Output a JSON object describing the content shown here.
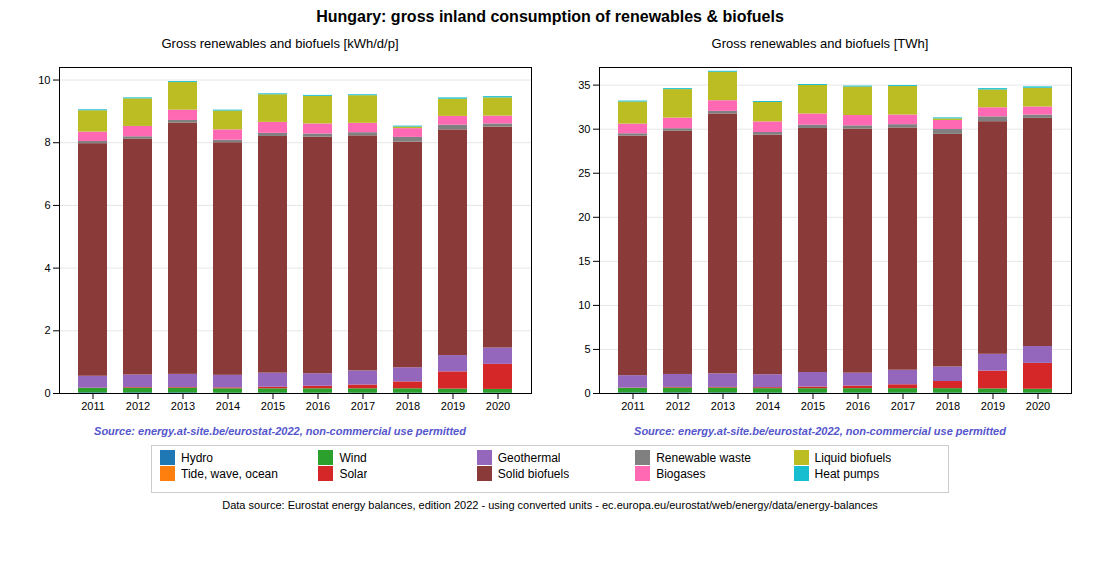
{
  "title": "Hungary: gross inland consumption of renewables & biofuels",
  "caption": "Data source: Eurostat energy balances, edition 2022 - using converted units - ec.europa.eu/eurostat/web/energy/data/energy-balances",
  "chart_data": [
    {
      "type": "bar",
      "stacked": true,
      "grid": true,
      "legend": "bottom",
      "title": "Gross renewables and biofuels [kWh/d/p]",
      "annotations": [
        {
          "text": "Source: energy.at-site.be/eurostat-2022, non-commercial use permitted",
          "color": "#5555cc"
        }
      ],
      "categories": [
        "2011",
        "2012",
        "2013",
        "2014",
        "2015",
        "2016",
        "2017",
        "2018",
        "2019",
        "2020"
      ],
      "series": [
        {
          "name": "Hydro",
          "color": "#1f77b4",
          "values": [
            0.02,
            0.02,
            0.02,
            0.01,
            0.01,
            0.01,
            0.01,
            0.01,
            0.01,
            0.01
          ]
        },
        {
          "name": "Tide, wave, ocean",
          "color": "#ff7f0e",
          "values": [
            0.0,
            0.0,
            0.0,
            0.0,
            0.0,
            0.0,
            0.0,
            0.0,
            0.0,
            0.0
          ]
        },
        {
          "name": "Wind",
          "color": "#2ca02c",
          "values": [
            0.14,
            0.15,
            0.15,
            0.14,
            0.14,
            0.14,
            0.14,
            0.14,
            0.13,
            0.12
          ]
        },
        {
          "name": "Solar",
          "color": "#d62728",
          "values": [
            0.01,
            0.02,
            0.02,
            0.03,
            0.05,
            0.08,
            0.12,
            0.22,
            0.55,
            0.8
          ]
        },
        {
          "name": "Geothermal",
          "color": "#9467bd",
          "values": [
            0.38,
            0.4,
            0.42,
            0.4,
            0.45,
            0.4,
            0.45,
            0.45,
            0.52,
            0.52
          ]
        },
        {
          "name": "Solid biofuels",
          "color": "#8B3A3A",
          "values": [
            7.42,
            7.52,
            8.02,
            7.42,
            7.55,
            7.55,
            7.5,
            7.2,
            7.2,
            7.05
          ]
        },
        {
          "name": "Renewable waste",
          "color": "#808080",
          "values": [
            0.07,
            0.08,
            0.08,
            0.08,
            0.1,
            0.1,
            0.1,
            0.15,
            0.15,
            0.1
          ]
        },
        {
          "name": "Biogases",
          "color": "#ff69b4",
          "values": [
            0.3,
            0.33,
            0.33,
            0.33,
            0.35,
            0.32,
            0.3,
            0.28,
            0.28,
            0.25
          ]
        },
        {
          "name": "Liquid biofuels",
          "color": "#bcbd22",
          "values": [
            0.68,
            0.88,
            0.88,
            0.6,
            0.88,
            0.88,
            0.88,
            0.05,
            0.55,
            0.58
          ]
        },
        {
          "name": "Heat pumps",
          "color": "#17becf",
          "values": [
            0.03,
            0.03,
            0.03,
            0.03,
            0.03,
            0.03,
            0.03,
            0.03,
            0.04,
            0.04
          ]
        }
      ],
      "ylim": [
        0,
        10.4
      ],
      "yticks": [
        0,
        2,
        4,
        6,
        8,
        10
      ]
    },
    {
      "type": "bar",
      "stacked": true,
      "grid": true,
      "legend": "bottom",
      "title": "Gross renewables and biofuels [TWh]",
      "annotations": [
        {
          "text": "Source: energy.at-site.be/eurostat-2022, non-commercial use permitted",
          "color": "#5555cc"
        }
      ],
      "categories": [
        "2011",
        "2012",
        "2013",
        "2014",
        "2015",
        "2016",
        "2017",
        "2018",
        "2019",
        "2020"
      ],
      "series": [
        {
          "name": "Hydro",
          "color": "#1f77b4",
          "values": [
            0.07,
            0.07,
            0.07,
            0.04,
            0.04,
            0.04,
            0.04,
            0.04,
            0.04,
            0.04
          ]
        },
        {
          "name": "Tide, wave, ocean",
          "color": "#ff7f0e",
          "values": [
            0.0,
            0.0,
            0.0,
            0.0,
            0.0,
            0.0,
            0.0,
            0.0,
            0.0,
            0.0
          ]
        },
        {
          "name": "Wind",
          "color": "#2ca02c",
          "values": [
            0.51,
            0.55,
            0.55,
            0.51,
            0.51,
            0.51,
            0.51,
            0.51,
            0.48,
            0.44
          ]
        },
        {
          "name": "Solar",
          "color": "#d62728",
          "values": [
            0.04,
            0.07,
            0.07,
            0.11,
            0.18,
            0.29,
            0.44,
            0.81,
            2.02,
            2.94
          ]
        },
        {
          "name": "Geothermal",
          "color": "#9467bd",
          "values": [
            1.4,
            1.47,
            1.54,
            1.47,
            1.65,
            1.47,
            1.65,
            1.65,
            1.91,
            1.91
          ]
        },
        {
          "name": "Solid biofuels",
          "color": "#8B3A3A",
          "values": [
            27.2,
            27.6,
            29.5,
            27.2,
            27.7,
            27.7,
            27.5,
            26.4,
            26.4,
            25.9
          ]
        },
        {
          "name": "Renewable waste",
          "color": "#808080",
          "values": [
            0.26,
            0.29,
            0.29,
            0.29,
            0.37,
            0.37,
            0.37,
            0.55,
            0.55,
            0.37
          ]
        },
        {
          "name": "Biogases",
          "color": "#ff69b4",
          "values": [
            1.1,
            1.21,
            1.21,
            1.21,
            1.28,
            1.17,
            1.1,
            1.03,
            1.03,
            0.92
          ]
        },
        {
          "name": "Liquid biofuels",
          "color": "#bcbd22",
          "values": [
            2.5,
            3.23,
            3.23,
            2.2,
            3.23,
            3.23,
            3.23,
            0.18,
            2.02,
            2.13
          ]
        },
        {
          "name": "Heat pumps",
          "color": "#17becf",
          "values": [
            0.11,
            0.11,
            0.11,
            0.11,
            0.11,
            0.11,
            0.11,
            0.11,
            0.15,
            0.15
          ]
        }
      ],
      "ylim": [
        0,
        37
      ],
      "yticks": [
        0,
        5,
        10,
        15,
        20,
        25,
        30,
        35
      ]
    }
  ]
}
